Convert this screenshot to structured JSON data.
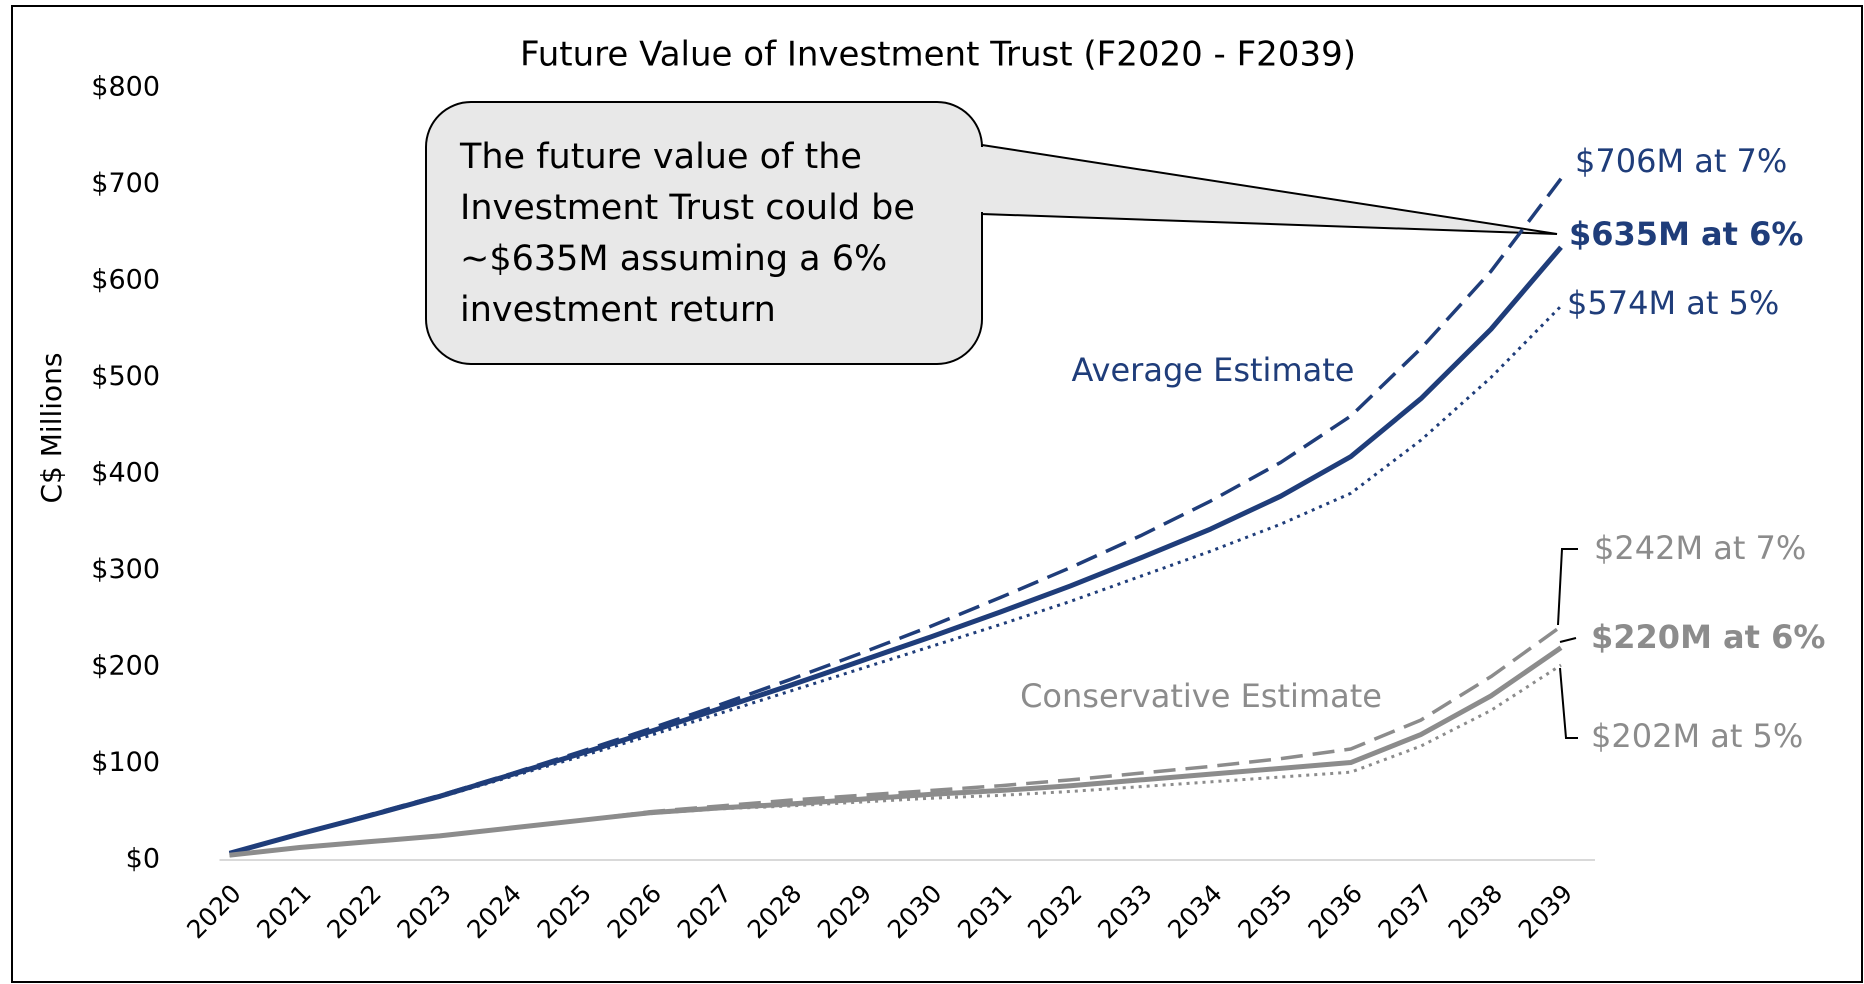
{
  "chart_data": {
    "type": "line",
    "title": "Future Value of Investment Trust (F2020 - F2039)",
    "y_label": "C$ Millions",
    "categories": [
      "2020",
      "2021",
      "2022",
      "2023",
      "2024",
      "2025",
      "2026",
      "2027",
      "2028",
      "2029",
      "2030",
      "2031",
      "2032",
      "2033",
      "2034",
      "2035",
      "2036",
      "2037",
      "2038",
      "2039"
    ],
    "ylim": [
      0,
      800
    ],
    "yticks": [
      {
        "value": 0,
        "label": "$0"
      },
      {
        "value": 100,
        "label": "$100"
      },
      {
        "value": 200,
        "label": "$200"
      },
      {
        "value": 300,
        "label": "$300"
      },
      {
        "value": 400,
        "label": "$400"
      },
      {
        "value": 500,
        "label": "$500"
      },
      {
        "value": 600,
        "label": "$600"
      },
      {
        "value": 700,
        "label": "$700"
      },
      {
        "value": 800,
        "label": "$800"
      }
    ],
    "series": [
      {
        "color": "#1f3d7a",
        "dash": "dashed",
        "end_label": "$706M at 7%",
        "values": [
          7,
          27,
          47,
          67,
          89,
          112,
          136,
          161,
          187,
          214,
          242,
          272,
          303,
          336,
          372,
          412,
          460,
          530,
          610,
          706
        ]
      },
      {
        "color": "#1f3d7a",
        "dash": "solid",
        "end_label": "$635M at 6%",
        "values": [
          7,
          27,
          46,
          66,
          88,
          110,
          133,
          157,
          181,
          206,
          231,
          257,
          284,
          313,
          343,
          377,
          418,
          478,
          550,
          635
        ]
      },
      {
        "color": "#1f3d7a",
        "dash": "dotted",
        "end_label": "$574M at 5%",
        "values": [
          7,
          27,
          46,
          65,
          86,
          107,
          129,
          152,
          175,
          198,
          221,
          244,
          268,
          294,
          320,
          348,
          380,
          435,
          500,
          574
        ]
      },
      {
        "color": "#8c8c8c",
        "dash": "dashed",
        "end_label": "$242M at 7%",
        "values": [
          5,
          13,
          19,
          25,
          33,
          41,
          50,
          56,
          62,
          67,
          72,
          77,
          83,
          90,
          97,
          105,
          115,
          145,
          190,
          242
        ]
      },
      {
        "color": "#8c8c8c",
        "dash": "solid",
        "end_label": "$220M at 6%",
        "values": [
          5,
          13,
          19,
          25,
          33,
          41,
          49,
          54,
          58,
          63,
          68,
          72,
          77,
          83,
          89,
          95,
          101,
          130,
          170,
          220
        ]
      },
      {
        "color": "#8c8c8c",
        "dash": "dotted",
        "end_label": "$202M at 5%",
        "values": [
          5,
          13,
          19,
          25,
          33,
          41,
          48,
          53,
          56,
          60,
          64,
          67,
          71,
          76,
          81,
          86,
          91,
          118,
          155,
          202
        ]
      }
    ],
    "group_labels": [
      "Average Estimate",
      "Conservative Estimate"
    ],
    "callout": [
      "The future value of the",
      "Investment Trust could be",
      "~$635M assuming a 6%",
      "investment return"
    ]
  }
}
